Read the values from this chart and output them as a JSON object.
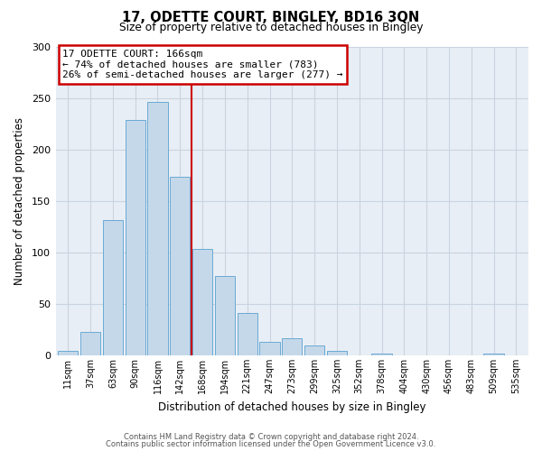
{
  "title": "17, ODETTE COURT, BINGLEY, BD16 3QN",
  "subtitle": "Size of property relative to detached houses in Bingley",
  "xlabel": "Distribution of detached houses by size in Bingley",
  "ylabel": "Number of detached properties",
  "bar_labels": [
    "11sqm",
    "37sqm",
    "63sqm",
    "90sqm",
    "116sqm",
    "142sqm",
    "168sqm",
    "194sqm",
    "221sqm",
    "247sqm",
    "273sqm",
    "299sqm",
    "325sqm",
    "352sqm",
    "378sqm",
    "404sqm",
    "430sqm",
    "456sqm",
    "483sqm",
    "509sqm",
    "535sqm"
  ],
  "bar_values": [
    4,
    23,
    131,
    229,
    246,
    173,
    103,
    77,
    41,
    13,
    17,
    10,
    4,
    0,
    2,
    0,
    0,
    0,
    0,
    2,
    0
  ],
  "bar_color": "#c5d8ea",
  "bar_edge_color": "#6aaad4",
  "vline_color": "#cc0000",
  "annotation_title": "17 ODETTE COURT: 166sqm",
  "annotation_line1": "← 74% of detached houses are smaller (783)",
  "annotation_line2": "26% of semi-detached houses are larger (277) →",
  "annotation_box_color": "#ffffff",
  "annotation_box_edge": "#cc0000",
  "ylim": [
    0,
    300
  ],
  "yticks": [
    0,
    50,
    100,
    150,
    200,
    250,
    300
  ],
  "fig_bg_color": "#ffffff",
  "plot_bg_color": "#e8eef5",
  "grid_color": "#c8d4e0",
  "footer1": "Contains HM Land Registry data © Crown copyright and database right 2024.",
  "footer2": "Contains public sector information licensed under the Open Government Licence v3.0."
}
